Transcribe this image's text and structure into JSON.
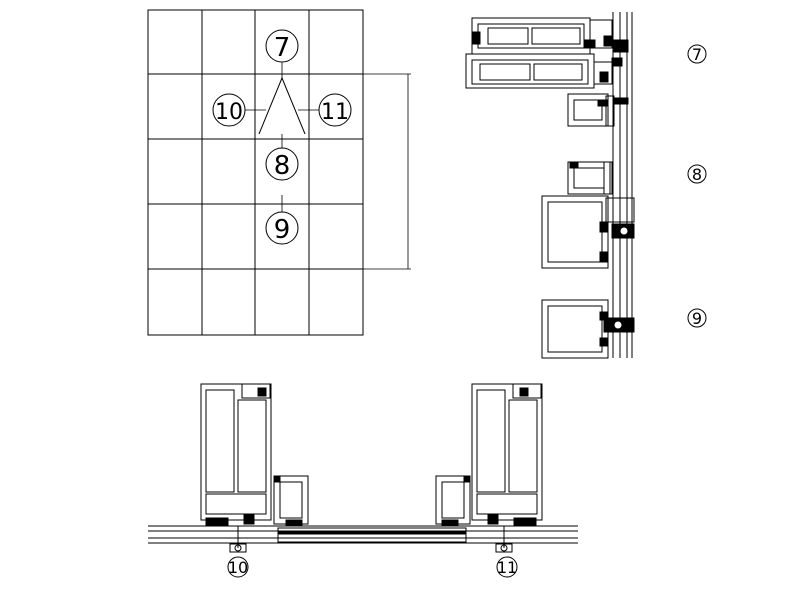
{
  "elevation": {
    "grid_cols": 4,
    "grid_rows": 5,
    "callouts": [
      {
        "id": "c7",
        "text": "7"
      },
      {
        "id": "c10",
        "text": "10"
      },
      {
        "id": "c11",
        "text": "11"
      },
      {
        "id": "c8",
        "text": "8"
      },
      {
        "id": "c9",
        "text": "9"
      }
    ]
  },
  "vertical_section": {
    "labels": [
      {
        "id": "v7",
        "text": "7"
      },
      {
        "id": "v8",
        "text": "8"
      },
      {
        "id": "v9",
        "text": "9"
      }
    ]
  },
  "horizontal_section": {
    "labels": [
      {
        "id": "h10",
        "text": "10"
      },
      {
        "id": "h11",
        "text": "11"
      }
    ]
  }
}
